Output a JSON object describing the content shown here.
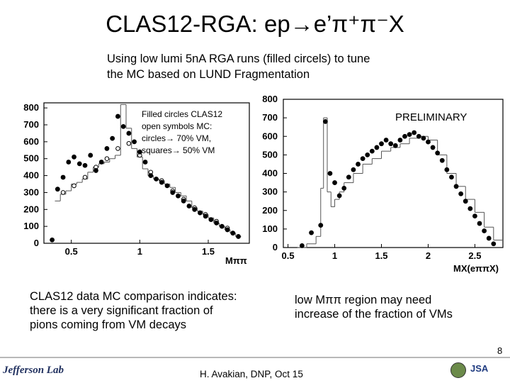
{
  "title": {
    "prefix": "CLAS12-RGA: ep",
    "arrow": "→",
    "rest": "e’π⁺π⁻X"
  },
  "subtitle": {
    "line1": "Using low lumi 5nA RGA runs  (filled circels) to tune",
    "line2": "the  MC based on LUND Fragmentation"
  },
  "left_plot": {
    "legend": [
      "Filled circles CLAS12",
      "open symbols MC:",
      "circles→ 70% VM,",
      "squares→ 50% VM"
    ],
    "xlabel": "Mππ"
  },
  "right_plot": {
    "label": "PRELIMINARY",
    "xlabel": "MX(eππX)"
  },
  "caption_left": {
    "lines": [
      "CLAS12 data MC comparison indicates:",
      "there is a very significant fraction of",
      "pions coming from VM decays"
    ]
  },
  "caption_right": {
    "lines": [
      "low Mππ  region may need",
      "increase of the fraction of VMs"
    ]
  },
  "footer": {
    "author": "H. Avakian, DNP,  Oct 15",
    "page": "8",
    "logo_left": "Jefferson Lab",
    "logo_right": "JSA"
  },
  "chart_data": [
    {
      "type": "scatter",
      "title": "",
      "xlabel": "Mππ",
      "ylabel": "",
      "xlim": [
        0.3,
        1.8
      ],
      "ylim": [
        0,
        830
      ],
      "x_ticks": [
        0.5,
        1,
        1.5
      ],
      "y_ticks": [
        0,
        100,
        200,
        300,
        400,
        500,
        600,
        700,
        800
      ],
      "series": [
        {
          "name": "CLAS12 data (filled circles)",
          "x": [
            0.36,
            0.4,
            0.44,
            0.48,
            0.52,
            0.56,
            0.6,
            0.64,
            0.68,
            0.72,
            0.76,
            0.8,
            0.84,
            0.88,
            0.92,
            0.96,
            1.0,
            1.04,
            1.08,
            1.12,
            1.16,
            1.2,
            1.24,
            1.28,
            1.32,
            1.36,
            1.4,
            1.44,
            1.48,
            1.52,
            1.56,
            1.6,
            1.64,
            1.68,
            1.72
          ],
          "values": [
            20,
            320,
            390,
            480,
            510,
            470,
            460,
            520,
            430,
            480,
            560,
            620,
            750,
            690,
            650,
            600,
            540,
            480,
            400,
            380,
            360,
            340,
            300,
            280,
            250,
            220,
            200,
            180,
            160,
            140,
            120,
            100,
            80,
            60,
            40
          ]
        },
        {
          "name": "MC 70% VM (open circles)",
          "x": [
            0.44,
            0.52,
            0.6,
            0.68,
            0.76,
            0.84,
            0.92,
            1.0,
            1.08,
            1.16,
            1.24,
            1.32,
            1.4,
            1.48,
            1.56,
            1.64
          ],
          "values": [
            300,
            340,
            390,
            450,
            500,
            560,
            590,
            520,
            420,
            370,
            310,
            260,
            210,
            170,
            130,
            90
          ]
        },
        {
          "name": "MC 50% VM (open squares, histogram)",
          "x": [
            0.38,
            0.42,
            0.46,
            0.5,
            0.54,
            0.58,
            0.62,
            0.66,
            0.7,
            0.74,
            0.78,
            0.82,
            0.86,
            0.9,
            0.94,
            0.98,
            1.02,
            1.06,
            1.1,
            1.14,
            1.18,
            1.22,
            1.26,
            1.3,
            1.34,
            1.38,
            1.42,
            1.46,
            1.5,
            1.54,
            1.58,
            1.62,
            1.66,
            1.7
          ],
          "values": [
            250,
            290,
            310,
            350,
            360,
            380,
            420,
            450,
            470,
            480,
            500,
            520,
            820,
            680,
            560,
            510,
            440,
            400,
            380,
            370,
            350,
            330,
            300,
            280,
            250,
            210,
            190,
            170,
            150,
            120,
            100,
            80,
            60,
            40
          ]
        }
      ]
    },
    {
      "type": "scatter",
      "title": "",
      "xlabel": "MX(eππX)",
      "ylabel": "",
      "xlim": [
        0.45,
        2.8
      ],
      "ylim": [
        0,
        800
      ],
      "x_ticks": [
        0.5,
        1,
        1.5,
        2,
        2.5
      ],
      "y_ticks": [
        0,
        100,
        200,
        300,
        400,
        500,
        600,
        700,
        800
      ],
      "annotation": "PRELIMINARY",
      "series": [
        {
          "name": "CLAS12 data (filled circles)",
          "x": [
            0.65,
            0.75,
            0.85,
            0.9,
            0.95,
            1.0,
            1.05,
            1.1,
            1.15,
            1.2,
            1.25,
            1.3,
            1.35,
            1.4,
            1.45,
            1.5,
            1.55,
            1.6,
            1.65,
            1.7,
            1.75,
            1.8,
            1.85,
            1.9,
            1.95,
            2.0,
            2.05,
            2.1,
            2.15,
            2.2,
            2.25,
            2.3,
            2.35,
            2.4,
            2.45,
            2.5,
            2.55,
            2.6,
            2.65,
            2.7
          ],
          "values": [
            10,
            80,
            120,
            680,
            400,
            350,
            280,
            320,
            380,
            420,
            450,
            480,
            500,
            520,
            540,
            560,
            580,
            560,
            550,
            580,
            600,
            610,
            620,
            600,
            590,
            570,
            540,
            510,
            470,
            420,
            380,
            330,
            290,
            250,
            210,
            170,
            130,
            90,
            50,
            20
          ]
        },
        {
          "name": "MC (histogram)",
          "x": [
            0.6,
            0.7,
            0.8,
            0.85,
            0.88,
            0.92,
            0.96,
            1.0,
            1.05,
            1.1,
            1.2,
            1.3,
            1.4,
            1.5,
            1.6,
            1.7,
            1.8,
            1.9,
            2.0,
            2.1,
            2.2,
            2.3,
            2.4,
            2.5,
            2.6,
            2.7
          ],
          "values": [
            0,
            20,
            60,
            320,
            700,
            300,
            220,
            260,
            300,
            350,
            400,
            450,
            480,
            520,
            540,
            560,
            590,
            600,
            580,
            500,
            400,
            330,
            260,
            190,
            110,
            40
          ]
        }
      ]
    }
  ]
}
